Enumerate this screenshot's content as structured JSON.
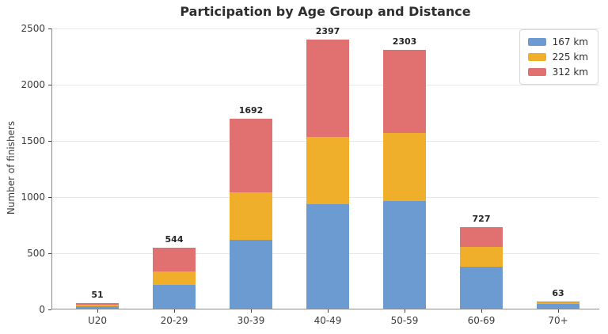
{
  "figure": {
    "title": "Participation by Age Group and Distance",
    "ylabel": "Number of finishers"
  },
  "chart_data": {
    "type": "bar",
    "stacked": true,
    "title": "Participation by Age Group and Distance",
    "xlabel": "",
    "ylabel": "Number of finishers",
    "categories": [
      "U20",
      "20-29",
      "30-39",
      "40-49",
      "50-59",
      "60-69",
      "70+"
    ],
    "series": [
      {
        "name": "167 km",
        "color": "#6C9BD2",
        "values": [
          22,
          212,
          615,
          930,
          955,
          372,
          44
        ]
      },
      {
        "name": "225 km",
        "color": "#F0AF2B",
        "values": [
          16,
          120,
          420,
          595,
          610,
          180,
          12
        ]
      },
      {
        "name": "312 km",
        "color": "#E17070",
        "values": [
          13,
          212,
          657,
          872,
          738,
          175,
          7
        ]
      }
    ],
    "totals": [
      51,
      544,
      1692,
      2397,
      2303,
      727,
      63
    ],
    "ylim": [
      0,
      2500
    ],
    "yticks": [
      0,
      500,
      1000,
      1500,
      2000,
      2500
    ],
    "grid": "horizontal",
    "legend_position": "upper right",
    "colors": {
      "grid": "#e7e7e7",
      "spine": "#8c8c8c",
      "text": "#3b3b3b",
      "title": "#2e2e2e"
    }
  }
}
